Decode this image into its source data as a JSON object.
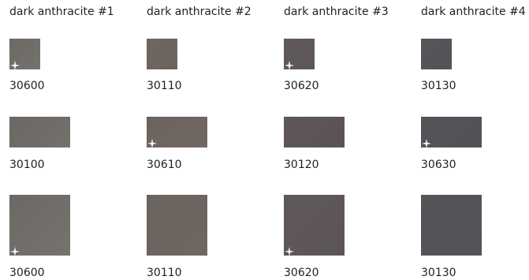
{
  "columns": [
    {
      "title": "dark anthracite #1"
    },
    {
      "title": "dark anthracite #2"
    },
    {
      "title": "dark anthracite #3"
    },
    {
      "title": "dark anthracite #4"
    }
  ],
  "rows": [
    [
      {
        "code": "30600",
        "color_from": "#6c6864",
        "color_to": "#75726e",
        "star": true
      },
      {
        "code": "30110",
        "color_from": "#6e6661",
        "color_to": "#6a645f",
        "star": false
      },
      {
        "code": "30620",
        "color_from": "#605859",
        "color_to": "#5e5758",
        "star": true
      },
      {
        "code": "30130",
        "color_from": "#555659",
        "color_to": "#535457",
        "star": false
      }
    ],
    [
      {
        "code": "30100",
        "color_from": "#6b6864",
        "color_to": "#74706c",
        "star": false
      },
      {
        "code": "30610",
        "color_from": "#6c625d",
        "color_to": "#716864",
        "star": true
      },
      {
        "code": "30120",
        "color_from": "#5f5757",
        "color_to": "#5a5354",
        "star": false
      },
      {
        "code": "30630",
        "color_from": "#545558",
        "color_to": "#515256",
        "star": true
      }
    ],
    [
      {
        "code": "30600",
        "color_from": "#6c6864",
        "color_to": "#76726e",
        "star": true
      },
      {
        "code": "30110",
        "color_from": "#6b635e",
        "color_to": "#6e6661",
        "star": false
      },
      {
        "code": "30620",
        "color_from": "#605859",
        "color_to": "#5c5556",
        "star": true
      },
      {
        "code": "30130",
        "color_from": "#545558",
        "color_to": "#525356",
        "star": false
      }
    ]
  ]
}
